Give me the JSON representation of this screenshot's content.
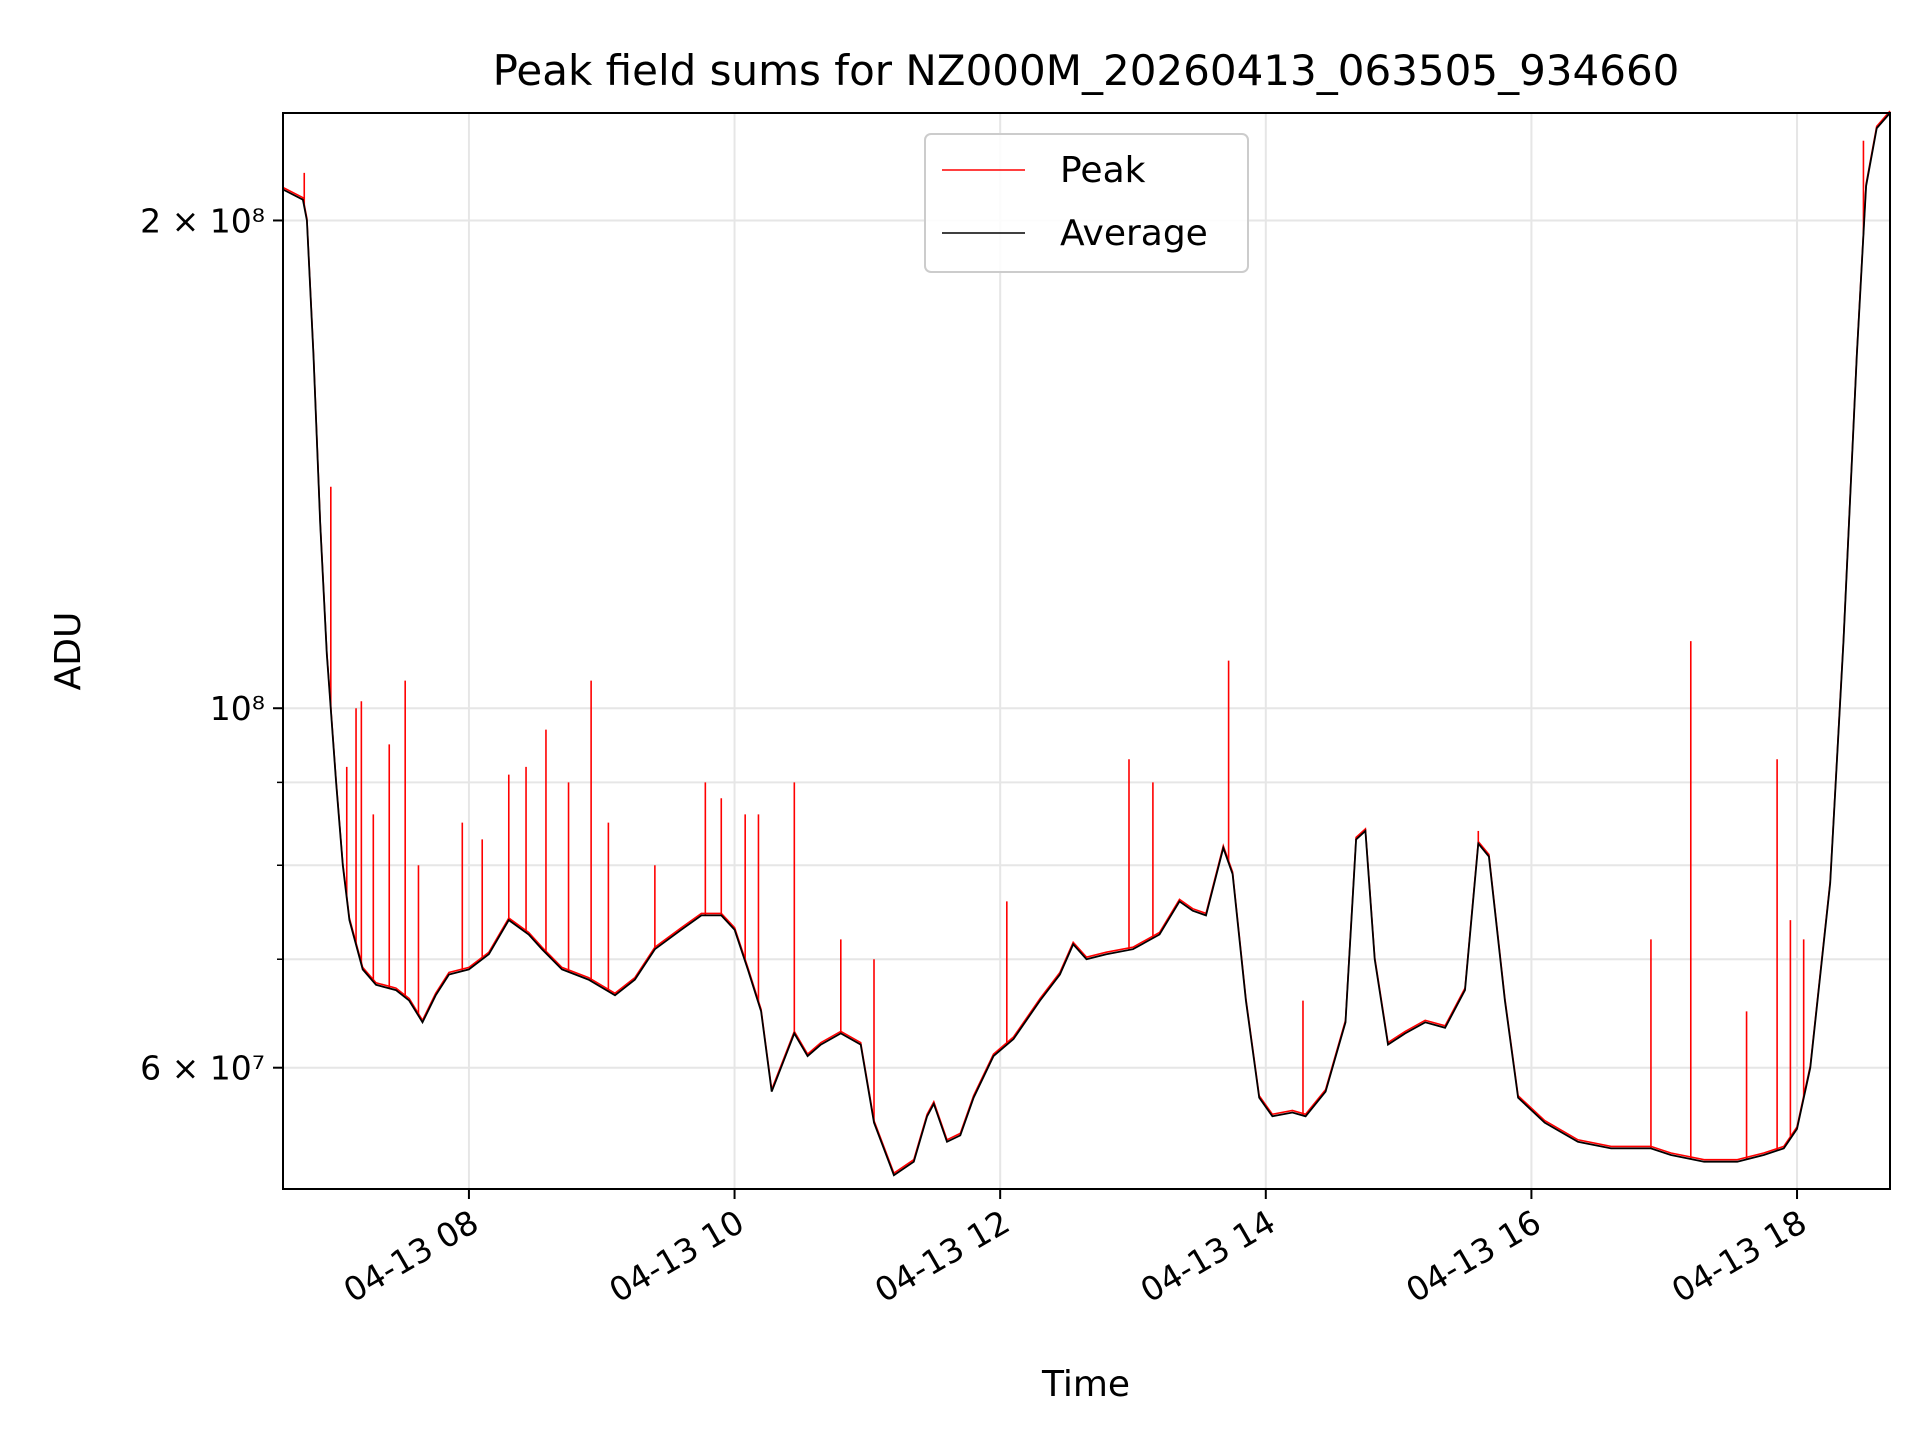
{
  "chart_data": {
    "type": "line",
    "title": "Peak field sums for NZ000M_20260413_063505_934660",
    "xlabel": "Time",
    "ylabel": "ADU",
    "yscale": "log",
    "xlim_hours": [
      6.6,
      18.7
    ],
    "ylim": [
      50500000,
      233000000
    ],
    "grid": true,
    "legend_position": "top-center",
    "x_ticks": [
      {
        "value": 8,
        "label": "04-13 08"
      },
      {
        "value": 10,
        "label": "04-13 10"
      },
      {
        "value": 12,
        "label": "04-13 12"
      },
      {
        "value": 14,
        "label": "04-13 14"
      },
      {
        "value": 16,
        "label": "04-13 16"
      },
      {
        "value": 18,
        "label": "04-13 18"
      }
    ],
    "y_major_ticks": [
      {
        "value": 60000000,
        "label": "6 × 10⁷"
      },
      {
        "value": 100000000,
        "label": "10⁸"
      },
      {
        "value": 200000000,
        "label": "2 × 10⁸"
      }
    ],
    "y_minor_ticks": [
      70000000,
      80000000,
      90000000
    ],
    "series": [
      {
        "name": "Average",
        "color": "#000000",
        "points": [
          [
            6.6,
            209000000
          ],
          [
            6.75,
            206000000
          ],
          [
            6.78,
            200000000
          ],
          [
            6.83,
            165000000
          ],
          [
            6.88,
            130000000
          ],
          [
            6.93,
            108000000
          ],
          [
            7.0,
            90000000
          ],
          [
            7.05,
            80000000
          ],
          [
            7.1,
            74000000
          ],
          [
            7.2,
            69000000
          ],
          [
            7.3,
            67500000
          ],
          [
            7.45,
            67000000
          ],
          [
            7.55,
            66000000
          ],
          [
            7.65,
            64000000
          ],
          [
            7.75,
            66500000
          ],
          [
            7.85,
            68500000
          ],
          [
            8.0,
            69000000
          ],
          [
            8.15,
            70500000
          ],
          [
            8.3,
            74000000
          ],
          [
            8.45,
            72500000
          ],
          [
            8.55,
            71000000
          ],
          [
            8.7,
            69000000
          ],
          [
            8.9,
            68000000
          ],
          [
            9.1,
            66500000
          ],
          [
            9.25,
            68000000
          ],
          [
            9.4,
            71000000
          ],
          [
            9.6,
            73000000
          ],
          [
            9.75,
            74500000
          ],
          [
            9.9,
            74500000
          ],
          [
            10.0,
            73000000
          ],
          [
            10.1,
            69000000
          ],
          [
            10.2,
            65000000
          ],
          [
            10.28,
            58000000
          ],
          [
            10.35,
            60000000
          ],
          [
            10.45,
            63000000
          ],
          [
            10.55,
            61000000
          ],
          [
            10.65,
            62000000
          ],
          [
            10.8,
            63000000
          ],
          [
            10.95,
            62000000
          ],
          [
            11.05,
            55500000
          ],
          [
            11.2,
            51500000
          ],
          [
            11.35,
            52500000
          ],
          [
            11.45,
            56000000
          ],
          [
            11.5,
            57000000
          ],
          [
            11.6,
            54000000
          ],
          [
            11.7,
            54500000
          ],
          [
            11.8,
            57500000
          ],
          [
            11.95,
            61000000
          ],
          [
            12.1,
            62500000
          ],
          [
            12.3,
            66000000
          ],
          [
            12.45,
            68500000
          ],
          [
            12.55,
            71500000
          ],
          [
            12.65,
            70000000
          ],
          [
            12.8,
            70500000
          ],
          [
            13.0,
            71000000
          ],
          [
            13.2,
            72500000
          ],
          [
            13.35,
            76000000
          ],
          [
            13.45,
            75000000
          ],
          [
            13.55,
            74500000
          ],
          [
            13.68,
            82000000
          ],
          [
            13.75,
            79000000
          ],
          [
            13.85,
            66000000
          ],
          [
            13.95,
            57500000
          ],
          [
            14.05,
            56000000
          ],
          [
            14.2,
            56300000
          ],
          [
            14.3,
            56000000
          ],
          [
            14.45,
            58000000
          ],
          [
            14.6,
            64000000
          ],
          [
            14.68,
            83000000
          ],
          [
            14.75,
            84000000
          ],
          [
            14.82,
            70000000
          ],
          [
            14.92,
            62000000
          ],
          [
            15.05,
            63000000
          ],
          [
            15.2,
            64000000
          ],
          [
            15.35,
            63500000
          ],
          [
            15.5,
            67000000
          ],
          [
            15.6,
            82500000
          ],
          [
            15.68,
            81000000
          ],
          [
            15.8,
            66000000
          ],
          [
            15.9,
            57500000
          ],
          [
            16.1,
            55500000
          ],
          [
            16.35,
            54000000
          ],
          [
            16.6,
            53500000
          ],
          [
            16.9,
            53500000
          ],
          [
            17.05,
            53000000
          ],
          [
            17.3,
            52500000
          ],
          [
            17.55,
            52500000
          ],
          [
            17.75,
            53000000
          ],
          [
            17.9,
            53500000
          ],
          [
            18.0,
            55000000
          ],
          [
            18.1,
            60000000
          ],
          [
            18.25,
            78000000
          ],
          [
            18.35,
            110000000
          ],
          [
            18.45,
            165000000
          ],
          [
            18.52,
            210000000
          ],
          [
            18.6,
            228000000
          ],
          [
            18.7,
            233000000
          ]
        ]
      },
      {
        "name": "Peak",
        "color": "#ff0000",
        "spikes": [
          [
            6.76,
            214000000
          ],
          [
            6.96,
            137000000
          ],
          [
            7.08,
            92000000
          ],
          [
            7.15,
            100000000
          ],
          [
            7.19,
            101000000
          ],
          [
            7.28,
            86000000
          ],
          [
            7.4,
            95000000
          ],
          [
            7.52,
            104000000
          ],
          [
            7.62,
            80000000
          ],
          [
            7.95,
            85000000
          ],
          [
            8.1,
            83000000
          ],
          [
            8.3,
            91000000
          ],
          [
            8.43,
            92000000
          ],
          [
            8.58,
            97000000
          ],
          [
            8.75,
            90000000
          ],
          [
            8.92,
            104000000
          ],
          [
            9.05,
            85000000
          ],
          [
            9.4,
            80000000
          ],
          [
            9.78,
            90000000
          ],
          [
            9.9,
            88000000
          ],
          [
            10.08,
            86000000
          ],
          [
            10.18,
            86000000
          ],
          [
            10.45,
            90000000
          ],
          [
            10.8,
            72000000
          ],
          [
            11.05,
            70000000
          ],
          [
            12.05,
            76000000
          ],
          [
            12.97,
            93000000
          ],
          [
            13.15,
            90000000
          ],
          [
            13.72,
            107000000
          ],
          [
            14.28,
            66000000
          ],
          [
            15.6,
            84000000
          ],
          [
            16.9,
            72000000
          ],
          [
            17.2,
            110000000
          ],
          [
            17.62,
            65000000
          ],
          [
            17.85,
            93000000
          ],
          [
            17.95,
            74000000
          ],
          [
            18.05,
            72000000
          ],
          [
            18.5,
            224000000
          ]
        ]
      }
    ]
  }
}
